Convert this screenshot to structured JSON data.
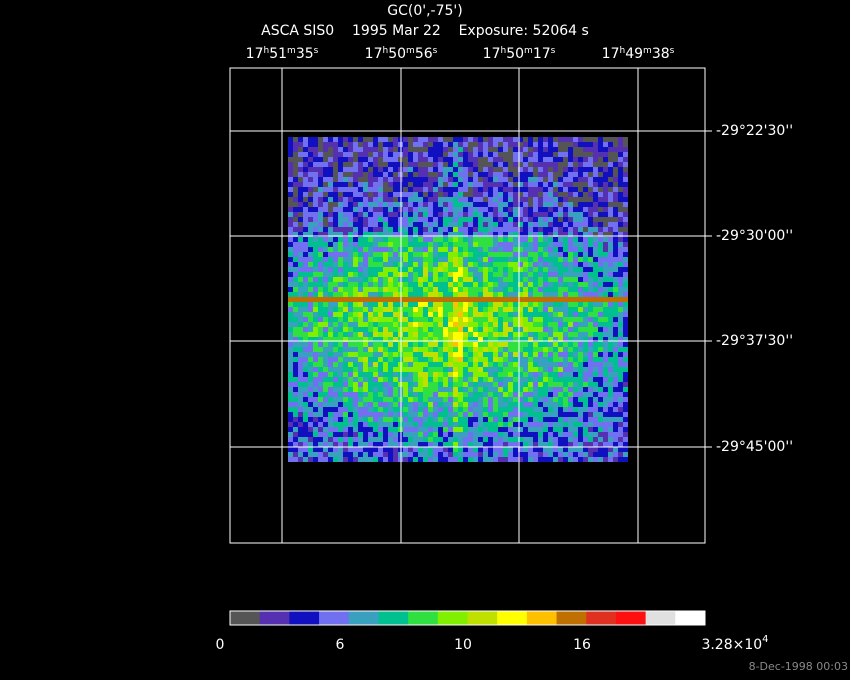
{
  "header": {
    "title": "GC(0',-75')",
    "subtitle": "ASCA SIS0    1995 Mar 22    Exposure: 52064 s"
  },
  "ra_labels": [
    [
      "17",
      "h",
      "51",
      "m",
      "35",
      "s"
    ],
    [
      "17",
      "h",
      "50",
      "m",
      "56",
      "s"
    ],
    [
      "17",
      "h",
      "50",
      "m",
      "17",
      "s"
    ],
    [
      "17",
      "h",
      "49",
      "m",
      "38",
      "s"
    ]
  ],
  "dec_labels": [
    "-29°22'30''",
    "-29°30'00''",
    "-29°37'30''",
    "-29°45'00''"
  ],
  "colorbar": {
    "colors": [
      "#555555",
      "#5530b0",
      "#1010c0",
      "#7070f0",
      "#3aa0c0",
      "#00c090",
      "#30e040",
      "#80f000",
      "#c0e000",
      "#ffff00",
      "#ffc000",
      "#c07000",
      "#e03020",
      "#ff1010",
      "#e0e0e0",
      "#ffffff"
    ],
    "labels": [
      "0",
      "6",
      "10",
      "16"
    ],
    "max_label": {
      "mantissa": "3.28×10",
      "exponent": "4"
    }
  },
  "footer": "8-Dec-1998 00:03"
}
